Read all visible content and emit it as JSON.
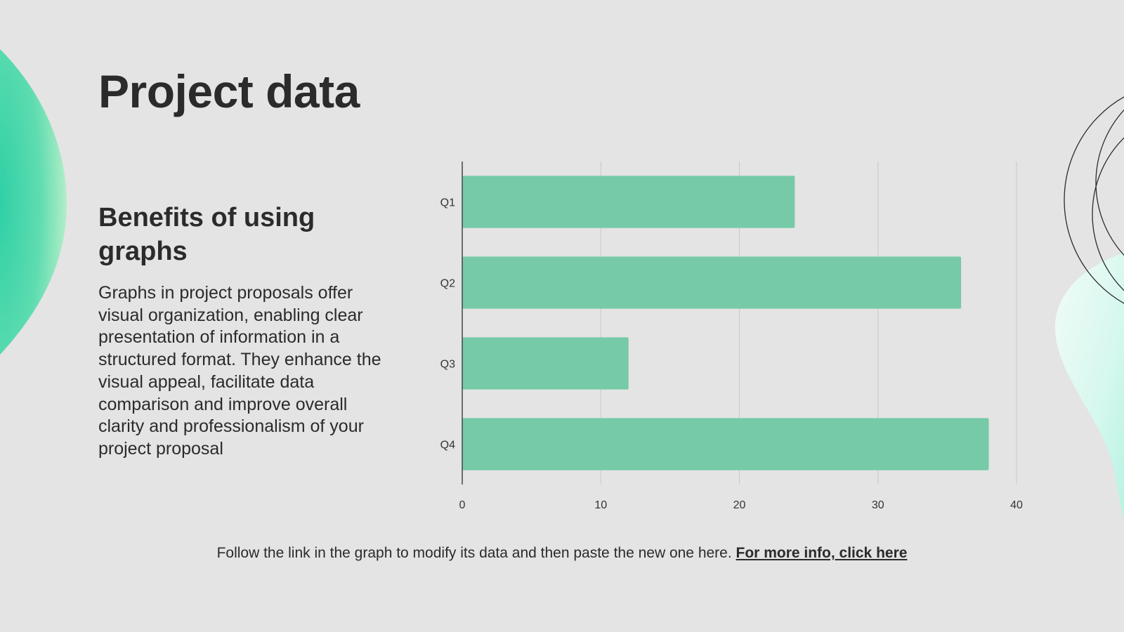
{
  "slide": {
    "title": "Project data",
    "subtitle": "Benefits of using graphs",
    "body": "Graphs in project proposals offer visual organization, enabling clear presentation of information in a structured format. They enhance the visual appeal, facilitate data comparison and improve overall clarity and professionalism of your project proposal",
    "footer_text": "Follow the link in the graph to modify its data and then paste the new one here.",
    "footer_link": "For more info, click here"
  },
  "colors": {
    "background": "#e4e4e4",
    "bar": "#76caa7",
    "text": "#2b2b2b",
    "accent_green": "#3ed3a8"
  },
  "chart_data": {
    "type": "bar",
    "orientation": "horizontal",
    "categories": [
      "Q1",
      "Q2",
      "Q3",
      "Q4"
    ],
    "values": [
      24,
      36,
      12,
      38
    ],
    "xlim": [
      0,
      40
    ],
    "xticks": [
      0,
      10,
      20,
      30,
      40
    ],
    "title": "",
    "xlabel": "",
    "ylabel": "",
    "grid": true,
    "legend": "none"
  }
}
